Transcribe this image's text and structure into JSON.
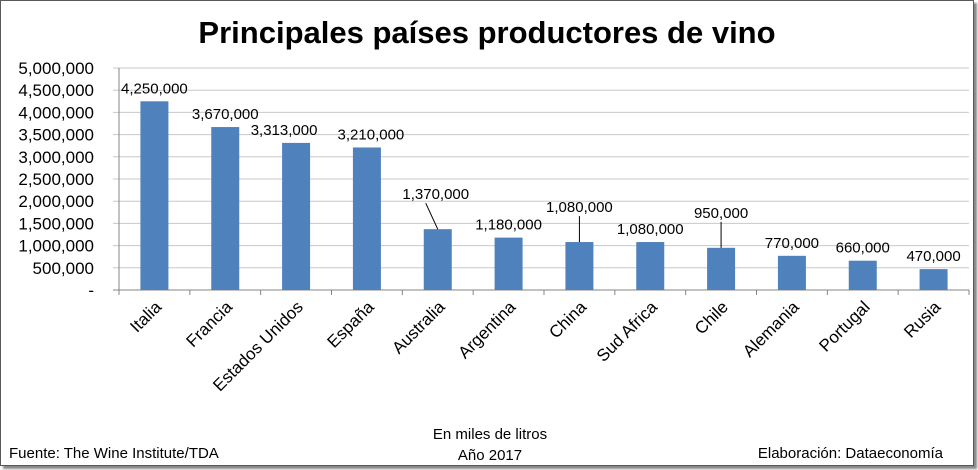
{
  "chart_data": {
    "type": "bar",
    "title": "Principales países productores de vino",
    "categories": [
      "Italia",
      "Francia",
      "Estados Unidos",
      "España",
      "Australia",
      "Argentina",
      "China",
      "Sud Africa",
      "Chile",
      "Alemania",
      "Portugal",
      "Rusia"
    ],
    "values": [
      4250000,
      3670000,
      3313000,
      3210000,
      1370000,
      1180000,
      1080000,
      1080000,
      950000,
      770000,
      660000,
      470000
    ],
    "data_labels": [
      "4,250,000",
      "3,670,000",
      "3,313,000",
      "3,210,000",
      "1,370,000",
      "1,180,000",
      "1,080,000",
      "1,080,000",
      "950,000",
      "770,000",
      "660,000",
      "470,000"
    ],
    "yticks": [
      0,
      500000,
      1000000,
      1500000,
      2000000,
      2500000,
      3000000,
      3500000,
      4000000,
      4500000,
      5000000
    ],
    "ytick_labels": [
      "-",
      "500,000",
      "1,000,000",
      "1,500,000",
      "2,000,000",
      "2,500,000",
      "3,000,000",
      "3,500,000",
      "4,000,000",
      "4,500,000",
      "5,000,000"
    ],
    "ylim": [
      0,
      5000000
    ],
    "grid": true,
    "bar_color": "#4F81BD",
    "xlabel": "En miles de litros",
    "subtitle_bottom": "Año 2017",
    "source": "Fuente: The Wine Institute/TDA",
    "credit": "Elaboración: Dataeconomía"
  }
}
